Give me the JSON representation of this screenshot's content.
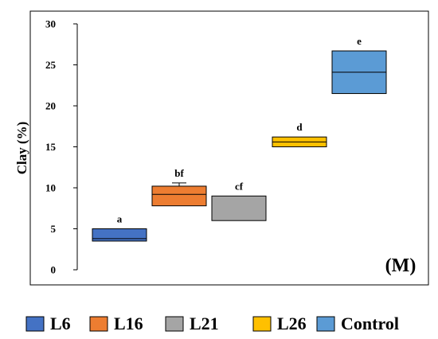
{
  "chart_data": {
    "type": "box",
    "ylabel": "Clay (%)",
    "ylim": [
      0,
      30
    ],
    "yticks": [
      0,
      5,
      10,
      15,
      20,
      25,
      30
    ],
    "panel_label": "(M)",
    "legend_position": "bottom",
    "categories": [
      "L6",
      "L16",
      "L21",
      "L26",
      "Control"
    ],
    "colors": [
      "#4472C4",
      "#ED7D31",
      "#A5A5A5",
      "#FFC000",
      "#5B9BD5"
    ],
    "boxes": [
      {
        "name": "L6",
        "q1": 3.5,
        "median": 3.8,
        "q3": 5.0,
        "whisker_high": null,
        "letter": "a"
      },
      {
        "name": "L16",
        "q1": 7.8,
        "median": 9.2,
        "q3": 10.2,
        "whisker_high": 10.6,
        "letter": "bf"
      },
      {
        "name": "L21",
        "q1": 6.0,
        "median": null,
        "q3": 9.0,
        "whisker_high": null,
        "letter": "cf"
      },
      {
        "name": "L26",
        "q1": 15.0,
        "median": 15.6,
        "q3": 16.2,
        "whisker_high": null,
        "letter": "d"
      },
      {
        "name": "Control",
        "q1": 21.5,
        "median": 24.1,
        "q3": 26.7,
        "whisker_high": null,
        "letter": "e"
      }
    ]
  }
}
